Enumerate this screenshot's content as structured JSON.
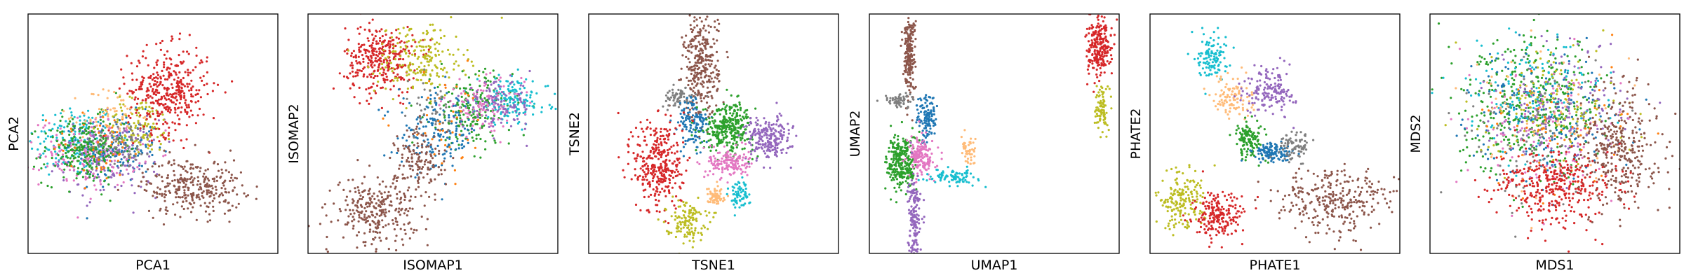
{
  "figure": {
    "background": "#ffffff",
    "marker": "dot"
  },
  "palette": {
    "blue": "#1f77b4",
    "orange": "#ff7f0e",
    "green": "#2ca02c",
    "red": "#d62728",
    "purple": "#9467bd",
    "brown": "#8c564b",
    "pink": "#e377c2",
    "gray": "#7f7f7f",
    "olive": "#bcbd22",
    "cyan": "#17becf",
    "peach": "#ffbb78"
  },
  "chart_data": [
    {
      "type": "scatter",
      "title": "",
      "xlabel": "PCA1",
      "ylabel": "PCA2",
      "xlim": [
        0,
        1
      ],
      "ylim": [
        0,
        1
      ],
      "ticks": false,
      "grid": false,
      "legend": "none",
      "clusters": [
        {
          "color": "cyan",
          "x": 0.18,
          "y": 0.47,
          "sx": 0.09,
          "sy": 0.08,
          "n": 160
        },
        {
          "color": "blue",
          "x": 0.36,
          "y": 0.44,
          "sx": 0.08,
          "sy": 0.07,
          "n": 160
        },
        {
          "color": "purple",
          "x": 0.33,
          "y": 0.4,
          "sx": 0.1,
          "sy": 0.08,
          "n": 180
        },
        {
          "color": "pink",
          "x": 0.25,
          "y": 0.42,
          "sx": 0.1,
          "sy": 0.07,
          "n": 160
        },
        {
          "color": "green",
          "x": 0.22,
          "y": 0.43,
          "sx": 0.08,
          "sy": 0.07,
          "n": 240
        },
        {
          "color": "orange",
          "x": 0.3,
          "y": 0.45,
          "sx": 0.1,
          "sy": 0.08,
          "n": 50
        },
        {
          "color": "peach",
          "x": 0.33,
          "y": 0.58,
          "sx": 0.06,
          "sy": 0.06,
          "n": 60
        },
        {
          "color": "olive",
          "x": 0.45,
          "y": 0.53,
          "sx": 0.07,
          "sy": 0.06,
          "n": 110
        },
        {
          "color": "gray",
          "x": 0.38,
          "y": 0.47,
          "sx": 0.06,
          "sy": 0.05,
          "n": 60
        },
        {
          "color": "red",
          "x": 0.56,
          "y": 0.68,
          "sx": 0.08,
          "sy": 0.09,
          "n": 380
        },
        {
          "color": "brown",
          "x": 0.66,
          "y": 0.28,
          "sx": 0.1,
          "sy": 0.06,
          "n": 300
        }
      ]
    },
    {
      "type": "scatter",
      "title": "",
      "xlabel": "ISOMAP1",
      "ylabel": "ISOMAP2",
      "xlim": [
        0,
        1
      ],
      "ylim": [
        0,
        1
      ],
      "ticks": false,
      "grid": false,
      "legend": "none",
      "clusters": [
        {
          "color": "red",
          "x": 0.29,
          "y": 0.81,
          "sx": 0.07,
          "sy": 0.07,
          "n": 320
        },
        {
          "color": "olive",
          "x": 0.45,
          "y": 0.81,
          "sx": 0.09,
          "sy": 0.08,
          "n": 200
        },
        {
          "color": "green",
          "x": 0.66,
          "y": 0.6,
          "sx": 0.08,
          "sy": 0.08,
          "n": 200
        },
        {
          "color": "cyan",
          "x": 0.82,
          "y": 0.64,
          "sx": 0.07,
          "sy": 0.05,
          "n": 150
        },
        {
          "color": "pink",
          "x": 0.7,
          "y": 0.62,
          "sx": 0.08,
          "sy": 0.05,
          "n": 110
        },
        {
          "color": "purple",
          "x": 0.76,
          "y": 0.62,
          "sx": 0.07,
          "sy": 0.05,
          "n": 110
        },
        {
          "color": "blue",
          "x": 0.52,
          "y": 0.5,
          "sx": 0.08,
          "sy": 0.08,
          "n": 170
        },
        {
          "color": "orange",
          "x": 0.55,
          "y": 0.55,
          "sx": 0.1,
          "sy": 0.1,
          "n": 40
        },
        {
          "color": "gray",
          "x": 0.48,
          "y": 0.6,
          "sx": 0.06,
          "sy": 0.06,
          "n": 40
        },
        {
          "color": "brown",
          "x": 0.27,
          "y": 0.18,
          "sx": 0.08,
          "sy": 0.07,
          "n": 280
        },
        {
          "color": "brown",
          "x": 0.45,
          "y": 0.38,
          "sx": 0.05,
          "sy": 0.08,
          "n": 140
        }
      ]
    },
    {
      "type": "scatter",
      "title": "",
      "xlabel": "TSNE1",
      "ylabel": "TSNE2",
      "xlim": [
        0,
        1
      ],
      "ylim": [
        0,
        1
      ],
      "ticks": false,
      "grid": false,
      "legend": "none",
      "clusters": [
        {
          "color": "brown",
          "x": 0.45,
          "y": 0.78,
          "sx": 0.035,
          "sy": 0.11,
          "n": 320
        },
        {
          "color": "gray",
          "x": 0.36,
          "y": 0.65,
          "sx": 0.035,
          "sy": 0.02,
          "n": 70
        },
        {
          "color": "blue",
          "x": 0.42,
          "y": 0.54,
          "sx": 0.03,
          "sy": 0.06,
          "n": 130
        },
        {
          "color": "green",
          "x": 0.56,
          "y": 0.53,
          "sx": 0.05,
          "sy": 0.05,
          "n": 320
        },
        {
          "color": "purple",
          "x": 0.72,
          "y": 0.48,
          "sx": 0.045,
          "sy": 0.045,
          "n": 220
        },
        {
          "color": "pink",
          "x": 0.56,
          "y": 0.38,
          "sx": 0.04,
          "sy": 0.03,
          "n": 150
        },
        {
          "color": "red",
          "x": 0.28,
          "y": 0.37,
          "sx": 0.05,
          "sy": 0.1,
          "n": 340
        },
        {
          "color": "olive",
          "x": 0.39,
          "y": 0.14,
          "sx": 0.04,
          "sy": 0.04,
          "n": 130
        },
        {
          "color": "peach",
          "x": 0.51,
          "y": 0.24,
          "sx": 0.018,
          "sy": 0.02,
          "n": 60
        },
        {
          "color": "cyan",
          "x": 0.6,
          "y": 0.25,
          "sx": 0.02,
          "sy": 0.03,
          "n": 70
        }
      ]
    },
    {
      "type": "scatter",
      "title": "",
      "xlabel": "UMAP1",
      "ylabel": "UMAP2",
      "xlim": [
        0,
        1
      ],
      "ylim": [
        0,
        1
      ],
      "ticks": false,
      "grid": false,
      "legend": "none",
      "clusters": [
        {
          "color": "brown",
          "x": 0.16,
          "y": 0.83,
          "sx": 0.012,
          "sy": 0.08,
          "n": 220
        },
        {
          "color": "gray",
          "x": 0.12,
          "y": 0.64,
          "sx": 0.03,
          "sy": 0.015,
          "n": 60
        },
        {
          "color": "blue",
          "x": 0.23,
          "y": 0.56,
          "sx": 0.02,
          "sy": 0.05,
          "n": 120
        },
        {
          "color": "green",
          "x": 0.13,
          "y": 0.38,
          "sx": 0.03,
          "sy": 0.06,
          "n": 280
        },
        {
          "color": "pink",
          "x": 0.21,
          "y": 0.4,
          "sx": 0.025,
          "sy": 0.04,
          "n": 160
        },
        {
          "color": "purple",
          "x": 0.18,
          "y": 0.16,
          "sx": 0.012,
          "sy": 0.09,
          "n": 160
        },
        {
          "color": "cyan",
          "x": 0.33,
          "y": 0.32,
          "sx": 0.05,
          "sy": 0.015,
          "n": 90
        },
        {
          "color": "peach",
          "x": 0.4,
          "y": 0.42,
          "sx": 0.015,
          "sy": 0.03,
          "n": 50
        },
        {
          "color": "red",
          "x": 0.92,
          "y": 0.86,
          "sx": 0.025,
          "sy": 0.06,
          "n": 240
        },
        {
          "color": "olive",
          "x": 0.93,
          "y": 0.6,
          "sx": 0.012,
          "sy": 0.05,
          "n": 90
        }
      ]
    },
    {
      "type": "scatter",
      "title": "",
      "xlabel": "PHATE1",
      "ylabel": "PHATE2",
      "xlim": [
        0,
        1
      ],
      "ylim": [
        0,
        1
      ],
      "ticks": false,
      "grid": false,
      "legend": "none",
      "clusters": [
        {
          "color": "cyan",
          "x": 0.25,
          "y": 0.83,
          "sx": 0.03,
          "sy": 0.05,
          "n": 120
        },
        {
          "color": "peach",
          "x": 0.33,
          "y": 0.65,
          "sx": 0.04,
          "sy": 0.04,
          "n": 110
        },
        {
          "color": "purple",
          "x": 0.48,
          "y": 0.68,
          "sx": 0.05,
          "sy": 0.05,
          "n": 160
        },
        {
          "color": "green",
          "x": 0.4,
          "y": 0.48,
          "sx": 0.03,
          "sy": 0.04,
          "n": 130
        },
        {
          "color": "blue",
          "x": 0.49,
          "y": 0.42,
          "sx": 0.04,
          "sy": 0.02,
          "n": 120
        },
        {
          "color": "gray",
          "x": 0.58,
          "y": 0.45,
          "sx": 0.03,
          "sy": 0.03,
          "n": 80
        },
        {
          "color": "brown",
          "x": 0.75,
          "y": 0.22,
          "sx": 0.12,
          "sy": 0.07,
          "n": 300
        },
        {
          "color": "olive",
          "x": 0.12,
          "y": 0.22,
          "sx": 0.05,
          "sy": 0.06,
          "n": 180
        },
        {
          "color": "red",
          "x": 0.27,
          "y": 0.15,
          "sx": 0.05,
          "sy": 0.05,
          "n": 200
        }
      ]
    },
    {
      "type": "scatter",
      "title": "",
      "xlabel": "MDS1",
      "ylabel": "MDS2",
      "xlim": [
        0,
        1
      ],
      "ylim": [
        0,
        1
      ],
      "ticks": false,
      "grid": false,
      "legend": "none",
      "clusters": [
        {
          "color": "green",
          "x": 0.42,
          "y": 0.62,
          "sx": 0.15,
          "sy": 0.14,
          "n": 420
        },
        {
          "color": "blue",
          "x": 0.45,
          "y": 0.58,
          "sx": 0.15,
          "sy": 0.14,
          "n": 180
        },
        {
          "color": "purple",
          "x": 0.52,
          "y": 0.6,
          "sx": 0.14,
          "sy": 0.14,
          "n": 160
        },
        {
          "color": "cyan",
          "x": 0.4,
          "y": 0.66,
          "sx": 0.14,
          "sy": 0.12,
          "n": 120
        },
        {
          "color": "pink",
          "x": 0.48,
          "y": 0.5,
          "sx": 0.15,
          "sy": 0.15,
          "n": 120
        },
        {
          "color": "olive",
          "x": 0.5,
          "y": 0.62,
          "sx": 0.14,
          "sy": 0.13,
          "n": 120
        },
        {
          "color": "gray",
          "x": 0.4,
          "y": 0.5,
          "sx": 0.14,
          "sy": 0.14,
          "n": 100
        },
        {
          "color": "orange",
          "x": 0.5,
          "y": 0.5,
          "sx": 0.16,
          "sy": 0.16,
          "n": 60
        },
        {
          "color": "peach",
          "x": 0.5,
          "y": 0.55,
          "sx": 0.16,
          "sy": 0.16,
          "n": 60
        },
        {
          "color": "brown",
          "x": 0.76,
          "y": 0.44,
          "sx": 0.08,
          "sy": 0.13,
          "n": 340
        },
        {
          "color": "red",
          "x": 0.5,
          "y": 0.28,
          "sx": 0.12,
          "sy": 0.08,
          "n": 360
        }
      ]
    }
  ]
}
